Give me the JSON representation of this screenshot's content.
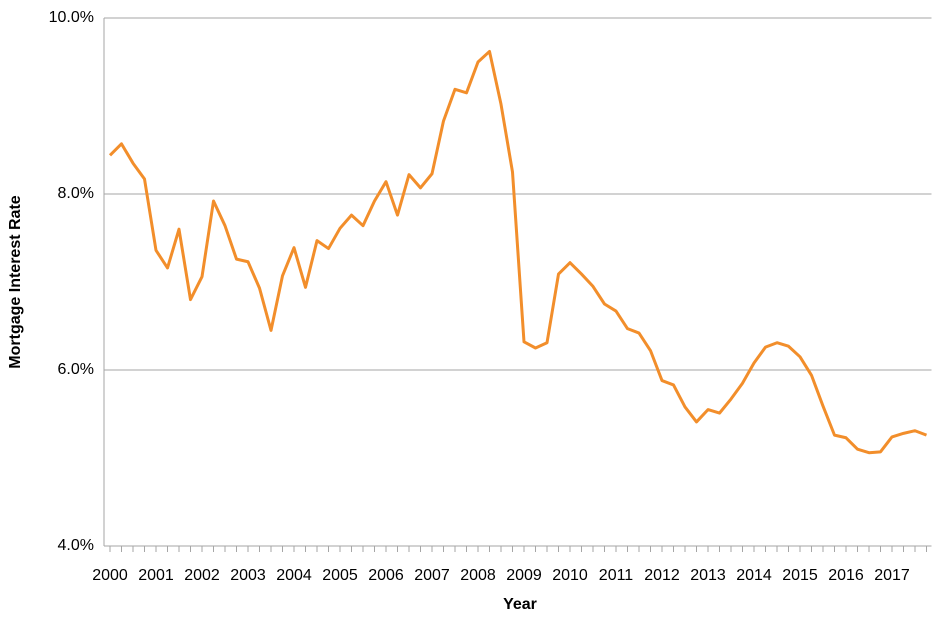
{
  "chart_data": {
    "type": "line",
    "xlabel": "Year",
    "ylabel": "Mortgage Interest Rate",
    "categories": [
      "2000",
      null,
      null,
      null,
      "2001",
      null,
      null,
      null,
      "2002",
      null,
      null,
      null,
      "2003",
      null,
      null,
      null,
      "2004",
      null,
      null,
      null,
      "2005",
      null,
      null,
      null,
      "2006",
      null,
      null,
      null,
      "2007",
      null,
      null,
      null,
      "2008",
      null,
      null,
      null,
      "2009",
      null,
      null,
      null,
      "2010",
      null,
      null,
      null,
      "2011",
      null,
      null,
      null,
      "2012",
      null,
      null,
      null,
      "2013",
      null,
      null,
      null,
      "2014",
      null,
      null,
      null,
      "2015",
      null,
      null,
      null,
      "2016",
      null,
      null,
      null,
      "2017",
      null,
      null,
      null
    ],
    "series": [
      {
        "name": "Mortgage Interest Rate",
        "color": "#f28e2b",
        "values": [
          8.44,
          8.57,
          8.35,
          8.17,
          7.36,
          7.16,
          7.6,
          6.8,
          7.06,
          7.92,
          7.64,
          7.26,
          7.23,
          6.93,
          6.45,
          7.07,
          7.39,
          6.94,
          7.47,
          7.38,
          7.61,
          7.76,
          7.64,
          7.92,
          8.14,
          7.76,
          8.22,
          8.07,
          8.23,
          8.83,
          9.19,
          9.15,
          9.5,
          9.62,
          9.02,
          8.25,
          6.32,
          6.25,
          6.31,
          7.09,
          7.22,
          7.09,
          6.95,
          6.75,
          6.67,
          6.47,
          6.42,
          6.22,
          5.88,
          5.83,
          5.58,
          5.41,
          5.55,
          5.51,
          5.67,
          5.85,
          6.08,
          6.26,
          6.31,
          6.27,
          6.15,
          5.94,
          5.59,
          5.26,
          5.23,
          5.1,
          5.06,
          5.07,
          5.24,
          5.28,
          5.31,
          5.26
        ]
      }
    ],
    "ylim": [
      4,
      10
    ],
    "yticks": [
      {
        "value": 4,
        "label": "4.0%"
      },
      {
        "value": 6,
        "label": "6.0%"
      },
      {
        "value": 8,
        "label": "8.0%"
      },
      {
        "value": 10,
        "label": "10.0%"
      }
    ],
    "grid": true
  }
}
